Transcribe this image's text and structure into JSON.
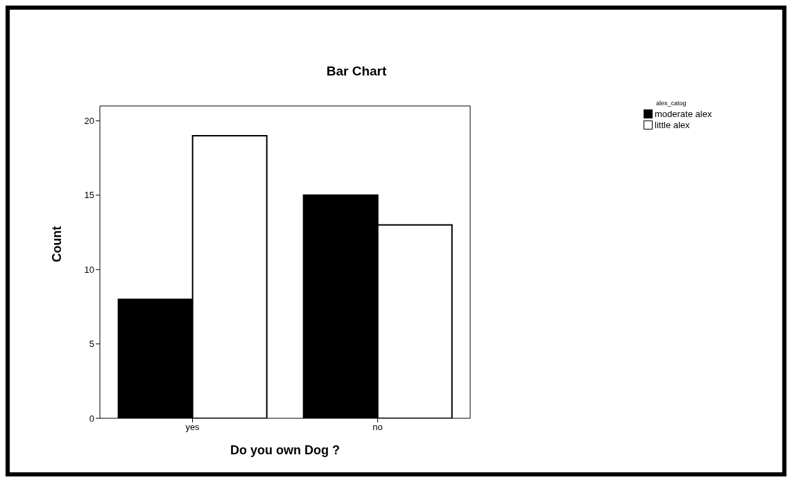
{
  "chart_data": {
    "type": "bar",
    "title": "Bar Chart",
    "xlabel": "Do you own Dog ?",
    "ylabel": "Count",
    "legend_title": "alex_catog",
    "categories": [
      "yes",
      "no"
    ],
    "series": [
      {
        "name": "moderate alex",
        "color": "#000000",
        "values": [
          8,
          15
        ]
      },
      {
        "name": "little alex",
        "color": "#ffffff",
        "values": [
          19,
          13
        ]
      }
    ],
    "ylim": [
      0,
      21
    ],
    "yticks": [
      0,
      5,
      10,
      15,
      20
    ],
    "grid": false,
    "legend": "top right"
  }
}
